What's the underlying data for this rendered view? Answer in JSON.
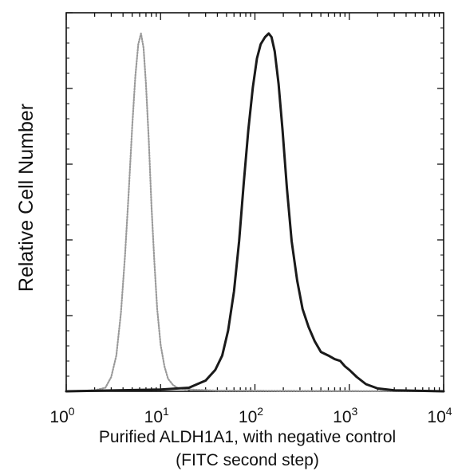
{
  "chart_data": {
    "type": "line",
    "title": "",
    "xlabel": "Purified ALDH1A1, with negative control",
    "xlabel_line2": "(FITC second step)",
    "ylabel": "Relative Cell Number",
    "x_scale": "log",
    "xlim": [
      1,
      10000
    ],
    "ylim": [
      0,
      1
    ],
    "grid": false,
    "x_ticks": [
      {
        "base": "10",
        "exp": "0"
      },
      {
        "base": "10",
        "exp": "1"
      },
      {
        "base": "10",
        "exp": "2"
      },
      {
        "base": "10",
        "exp": "3"
      },
      {
        "base": "10",
        "exp": "4"
      }
    ],
    "y_major_tick_count": 5,
    "series": [
      {
        "color": "#9a9a9a",
        "style": "dotted",
        "x": [
          1,
          2,
          2.6,
          3,
          3.4,
          3.8,
          4.2,
          4.6,
          5.0,
          5.4,
          5.8,
          6.2,
          6.6,
          7.0,
          7.5,
          8.0,
          8.6,
          9.2,
          10,
          11,
          12,
          13.5,
          15,
          18,
          25,
          40,
          10000
        ],
        "y": [
          0,
          0.003,
          0.01,
          0.04,
          0.1,
          0.22,
          0.38,
          0.56,
          0.74,
          0.88,
          0.97,
          1.0,
          0.96,
          0.86,
          0.7,
          0.52,
          0.36,
          0.23,
          0.13,
          0.07,
          0.035,
          0.018,
          0.01,
          0.006,
          0.004,
          0.002,
          0
        ]
      },
      {
        "color": "#1a1a1a",
        "style": "solid",
        "x": [
          1,
          10,
          20,
          30,
          38,
          45,
          52,
          60,
          68,
          76,
          85,
          95,
          105,
          115,
          128,
          140,
          150,
          162,
          178,
          196,
          218,
          245,
          280,
          320,
          370,
          430,
          500,
          600,
          700,
          800,
          900,
          1000,
          1200,
          1500,
          2000,
          3000,
          10000
        ],
        "y": [
          0,
          0.005,
          0.01,
          0.03,
          0.06,
          0.1,
          0.17,
          0.28,
          0.42,
          0.58,
          0.73,
          0.85,
          0.93,
          0.97,
          0.99,
          1.0,
          0.99,
          0.95,
          0.86,
          0.73,
          0.57,
          0.42,
          0.31,
          0.23,
          0.18,
          0.14,
          0.11,
          0.1,
          0.09,
          0.085,
          0.07,
          0.06,
          0.04,
          0.02,
          0.008,
          0.003,
          0
        ]
      }
    ]
  }
}
